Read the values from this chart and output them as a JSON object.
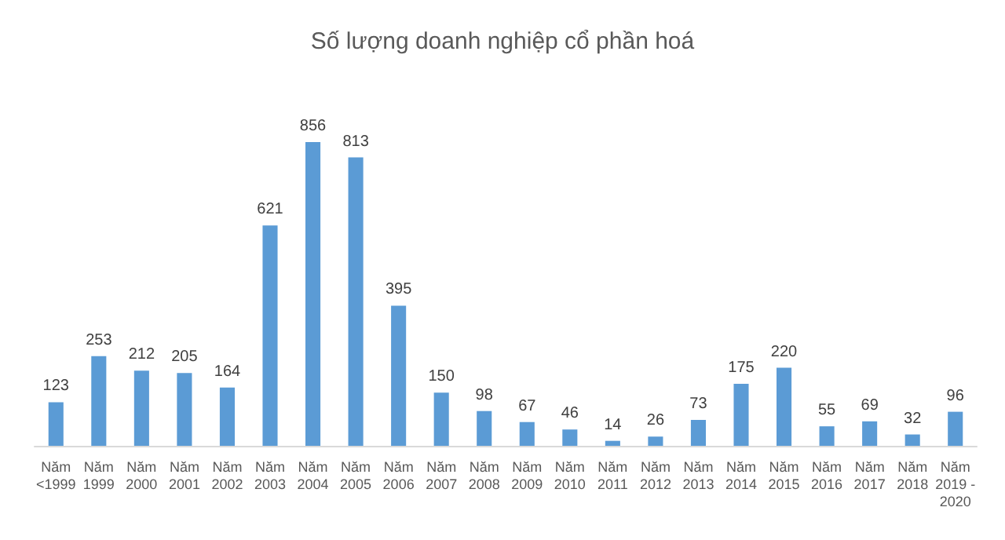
{
  "chart_data": {
    "type": "bar",
    "title": "Số lượng doanh nghiệp cổ phần hoá",
    "categories": [
      "Năm\n<1999",
      "Năm\n1999",
      "Năm\n2000",
      "Năm\n2001",
      "Năm\n2002",
      "Năm\n2003",
      "Năm\n2004",
      "Năm\n2005",
      "Năm\n2006",
      "Năm\n2007",
      "Năm\n2008",
      "Năm\n2009",
      "Năm\n2010",
      "Năm\n2011",
      "Năm\n2012",
      "Năm\n2013",
      "Năm\n2014",
      "Năm\n2015",
      "Năm\n2016",
      "Năm\n2017",
      "Năm\n2018",
      "Năm\n2019 -\n2020"
    ],
    "values": [
      123,
      253,
      212,
      205,
      164,
      621,
      856,
      813,
      395,
      150,
      98,
      67,
      46,
      14,
      26,
      73,
      175,
      220,
      55,
      69,
      32,
      96
    ],
    "color": "#5b9bd5",
    "data_labels": true
  }
}
